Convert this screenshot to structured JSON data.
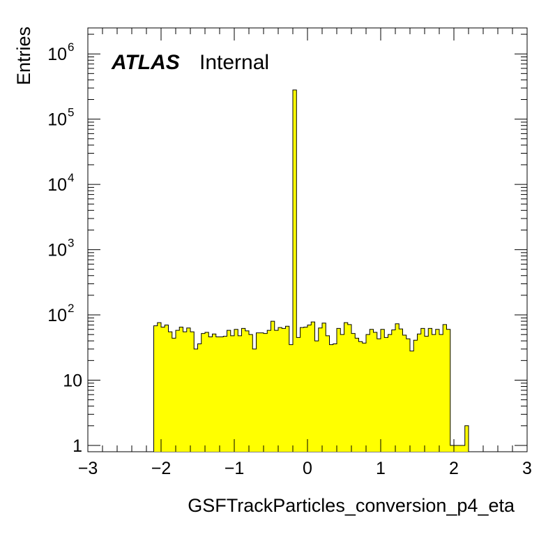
{
  "chart_data": {
    "type": "bar",
    "style": "histogram",
    "xlabel": "GSFTrackParticles_conversion_p4_eta",
    "ylabel": "Entries",
    "annotations": {
      "experiment": "ATLAS",
      "status": "Internal"
    },
    "xlim": [
      -3,
      3
    ],
    "ylim": [
      0.8,
      2500000
    ],
    "yscale": "log",
    "x_ticks": [
      "−3",
      "−2",
      "−1",
      "0",
      "1",
      "2",
      "3"
    ],
    "y_ticks": [
      {
        "value": 1,
        "base": "1",
        "exp": ""
      },
      {
        "value": 10,
        "base": "10",
        "exp": ""
      },
      {
        "value": 100,
        "base": "10",
        "exp": "2"
      },
      {
        "value": 1000,
        "base": "10",
        "exp": "3"
      },
      {
        "value": 10000,
        "base": "10",
        "exp": "4"
      },
      {
        "value": 100000,
        "base": "10",
        "exp": "5"
      },
      {
        "value": 1000000,
        "base": "10",
        "exp": "6"
      }
    ],
    "fill_color": "#ffff00",
    "line_color": "#000000",
    "bin_width": 0.05,
    "bin_low_edges": [
      -2.1,
      -2.05,
      -2.0,
      -1.95,
      -1.9,
      -1.85,
      -1.8,
      -1.75,
      -1.7,
      -1.65,
      -1.6,
      -1.55,
      -1.5,
      -1.45,
      -1.4,
      -1.35,
      -1.3,
      -1.25,
      -1.2,
      -1.15,
      -1.1,
      -1.05,
      -1.0,
      -0.95,
      -0.9,
      -0.85,
      -0.8,
      -0.75,
      -0.7,
      -0.65,
      -0.6,
      -0.55,
      -0.5,
      -0.45,
      -0.4,
      -0.35,
      -0.3,
      -0.25,
      -0.2,
      -0.15,
      -0.1,
      -0.05,
      0.0,
      0.05,
      0.1,
      0.15,
      0.2,
      0.25,
      0.3,
      0.35,
      0.4,
      0.45,
      0.5,
      0.55,
      0.6,
      0.65,
      0.7,
      0.75,
      0.8,
      0.85,
      0.9,
      0.95,
      1.0,
      1.05,
      1.1,
      1.15,
      1.2,
      1.25,
      1.3,
      1.35,
      1.4,
      1.45,
      1.5,
      1.55,
      1.6,
      1.65,
      1.7,
      1.75,
      1.8,
      1.85,
      1.9,
      1.95,
      2.0,
      2.05,
      2.1,
      2.15
    ],
    "values": [
      68,
      76,
      65,
      70,
      55,
      44,
      58,
      65,
      55,
      63,
      55,
      30,
      36,
      52,
      54,
      46,
      51,
      46,
      46,
      47,
      58,
      48,
      60,
      48,
      62,
      57,
      50,
      30,
      53,
      53,
      52,
      58,
      80,
      58,
      64,
      62,
      67,
      35,
      280000,
      45,
      64,
      65,
      70,
      78,
      40,
      63,
      75,
      48,
      35,
      36,
      62,
      50,
      76,
      71,
      52,
      44,
      39,
      37,
      50,
      60,
      54,
      43,
      60,
      45,
      50,
      59,
      73,
      61,
      49,
      43,
      28,
      41,
      51,
      62,
      47,
      62,
      50,
      60,
      50,
      71,
      60,
      1,
      1,
      1,
      1,
      2
    ]
  }
}
